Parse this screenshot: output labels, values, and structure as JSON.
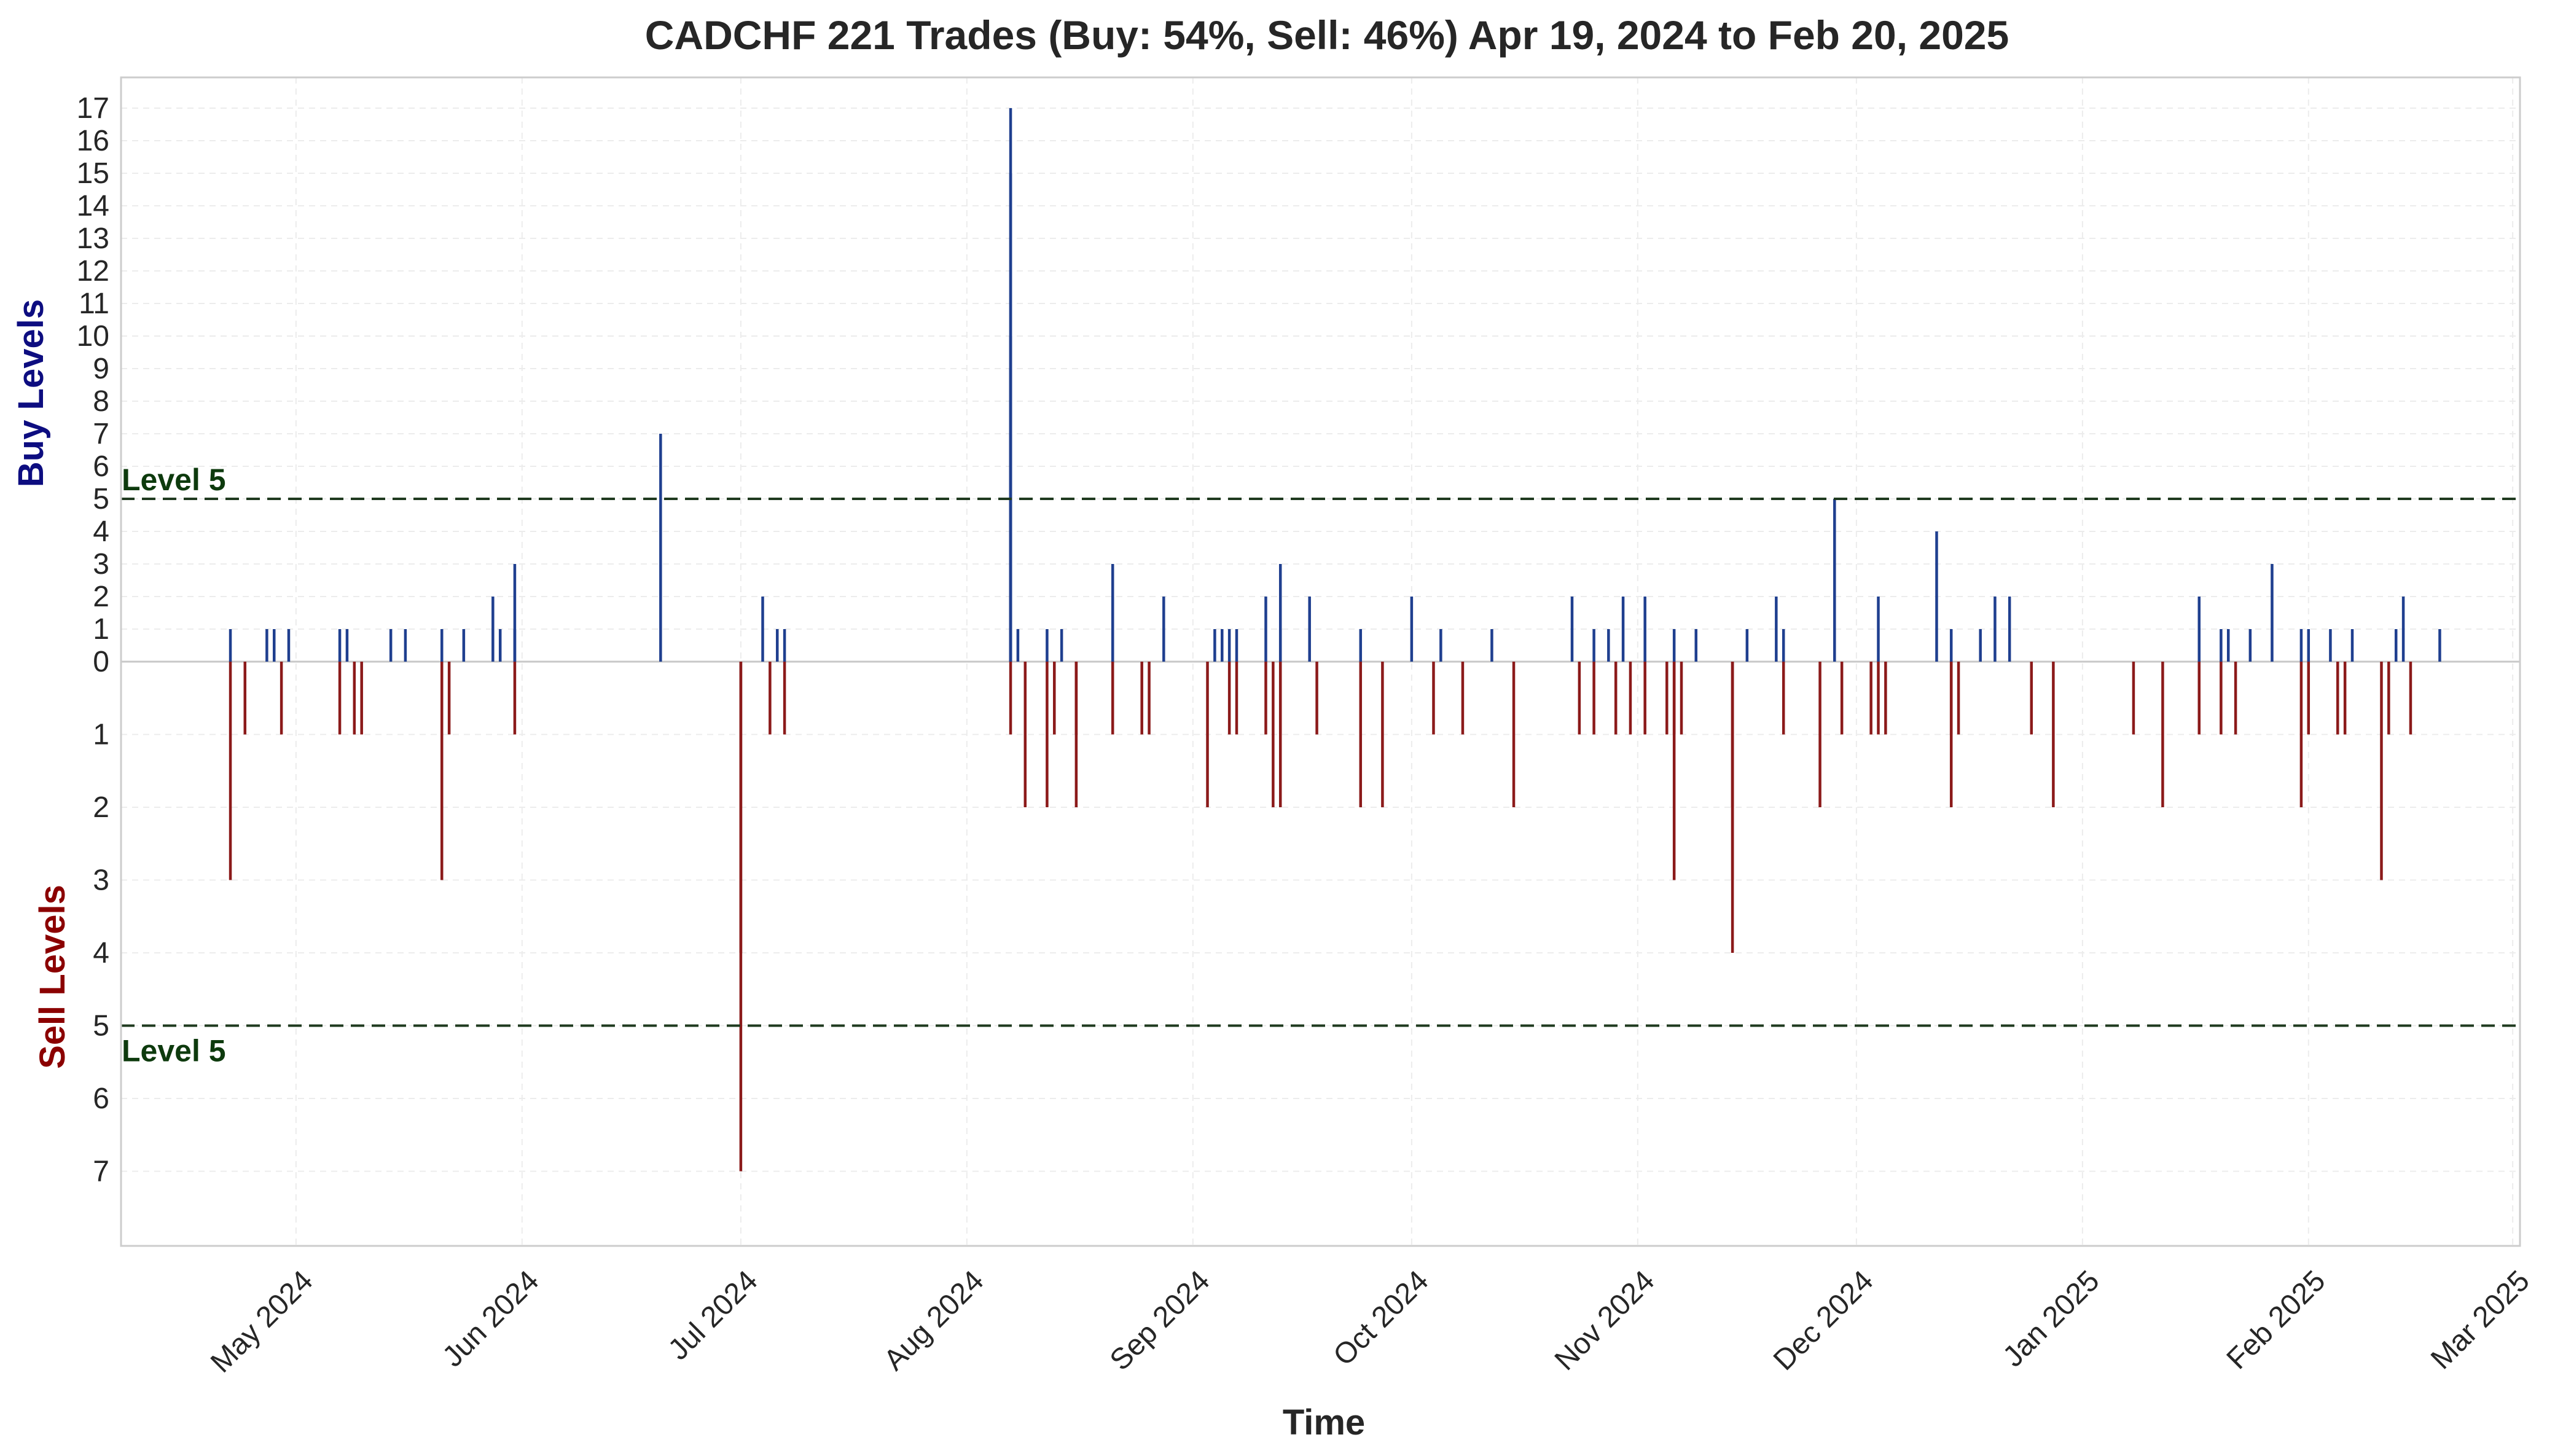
{
  "chart_data": {
    "type": "bar",
    "title": "CADCHF 221 Trades (Buy: 54%, Sell: 46%) Apr 19, 2024 to Feb 20, 2025",
    "xlabel": "Time",
    "buy_label": "Buy Levels",
    "sell_label": "Sell Levels",
    "x_range": [
      "2024-04-07",
      "2025-03-02"
    ],
    "x_ticks": [
      {
        "date": "2024-05-01",
        "label": "May 2024"
      },
      {
        "date": "2024-06-01",
        "label": "Jun 2024"
      },
      {
        "date": "2024-07-01",
        "label": "Jul 2024"
      },
      {
        "date": "2024-08-01",
        "label": "Aug 2024"
      },
      {
        "date": "2024-09-01",
        "label": "Sep 2024"
      },
      {
        "date": "2024-10-01",
        "label": "Oct 2024"
      },
      {
        "date": "2024-11-01",
        "label": "Nov 2024"
      },
      {
        "date": "2024-12-01",
        "label": "Dec 2024"
      },
      {
        "date": "2025-01-01",
        "label": "Jan 2025"
      },
      {
        "date": "2025-02-01",
        "label": "Feb 2025"
      },
      {
        "date": "2025-03-01",
        "label": "Mar 2025"
      }
    ],
    "buy_ylim": [
      0,
      18
    ],
    "buy_ticks": [
      0,
      1,
      2,
      3,
      4,
      5,
      6,
      7,
      8,
      9,
      10,
      11,
      12,
      13,
      14,
      15,
      16,
      17
    ],
    "sell_ylim": [
      0,
      8
    ],
    "sell_ticks": [
      1,
      2,
      3,
      4,
      5,
      6,
      7
    ],
    "reference": {
      "label": "Level 5",
      "value": 5
    },
    "colors": {
      "buy": "#1f3f8f",
      "sell": "#8b1a1a",
      "reference": "#1f3a1f",
      "buy_label": "#0d0d80",
      "sell_label": "#8b0000",
      "ref_label": "#0d3a0d"
    },
    "series": [
      {
        "name": "Buy",
        "points": [
          [
            "2024-04-22",
            1
          ],
          [
            "2024-04-27",
            1
          ],
          [
            "2024-04-28",
            1
          ],
          [
            "2024-04-30",
            1
          ],
          [
            "2024-05-07",
            1
          ],
          [
            "2024-05-08",
            1
          ],
          [
            "2024-05-14",
            1
          ],
          [
            "2024-05-16",
            1
          ],
          [
            "2024-05-21",
            1
          ],
          [
            "2024-05-24",
            1
          ],
          [
            "2024-05-28",
            2
          ],
          [
            "2024-05-29",
            1
          ],
          [
            "2024-05-31",
            3
          ],
          [
            "2024-05-31",
            1
          ],
          [
            "2024-06-20",
            7
          ],
          [
            "2024-07-04",
            2
          ],
          [
            "2024-07-06",
            1
          ],
          [
            "2024-07-07",
            1
          ],
          [
            "2024-08-07",
            17
          ],
          [
            "2024-08-07",
            15
          ],
          [
            "2024-08-07",
            10
          ],
          [
            "2024-08-07",
            9
          ],
          [
            "2024-08-07",
            7
          ],
          [
            "2024-08-08",
            1
          ],
          [
            "2024-08-12",
            1
          ],
          [
            "2024-08-14",
            1
          ],
          [
            "2024-08-21",
            3
          ],
          [
            "2024-08-21",
            2
          ],
          [
            "2024-08-28",
            2
          ],
          [
            "2024-09-04",
            1
          ],
          [
            "2024-09-05",
            1
          ],
          [
            "2024-09-06",
            1
          ],
          [
            "2024-09-07",
            1
          ],
          [
            "2024-09-11",
            2
          ],
          [
            "2024-09-13",
            3
          ],
          [
            "2024-09-13",
            1
          ],
          [
            "2024-09-17",
            2
          ],
          [
            "2024-09-24",
            1
          ],
          [
            "2024-10-01",
            2
          ],
          [
            "2024-10-05",
            1
          ],
          [
            "2024-10-12",
            1
          ],
          [
            "2024-10-23",
            2
          ],
          [
            "2024-10-26",
            1
          ],
          [
            "2024-10-28",
            1
          ],
          [
            "2024-10-30",
            2
          ],
          [
            "2024-11-02",
            2
          ],
          [
            "2024-11-06",
            1
          ],
          [
            "2024-11-09",
            1
          ],
          [
            "2024-11-16",
            1
          ],
          [
            "2024-11-20",
            2
          ],
          [
            "2024-11-21",
            1
          ],
          [
            "2024-11-28",
            5
          ],
          [
            "2024-12-04",
            2
          ],
          [
            "2024-12-12",
            4
          ],
          [
            "2024-12-14",
            1
          ],
          [
            "2024-12-18",
            1
          ],
          [
            "2024-12-20",
            2
          ],
          [
            "2024-12-22",
            2
          ],
          [
            "2025-01-17",
            2
          ],
          [
            "2025-01-20",
            1
          ],
          [
            "2025-01-21",
            1
          ],
          [
            "2025-01-24",
            1
          ],
          [
            "2025-01-27",
            3
          ],
          [
            "2025-01-31",
            1
          ],
          [
            "2025-02-01",
            1
          ],
          [
            "2025-02-04",
            1
          ],
          [
            "2025-02-07",
            1
          ],
          [
            "2025-02-13",
            1
          ],
          [
            "2025-02-14",
            2
          ],
          [
            "2025-02-19",
            1
          ]
        ]
      },
      {
        "name": "Sell",
        "points": [
          [
            "2024-04-22",
            3
          ],
          [
            "2024-04-24",
            1
          ],
          [
            "2024-04-29",
            1
          ],
          [
            "2024-05-07",
            1
          ],
          [
            "2024-05-09",
            1
          ],
          [
            "2024-05-10",
            1
          ],
          [
            "2024-05-21",
            3
          ],
          [
            "2024-05-22",
            1
          ],
          [
            "2024-05-31",
            1
          ],
          [
            "2024-07-01",
            7
          ],
          [
            "2024-07-01",
            4
          ],
          [
            "2024-07-05",
            1
          ],
          [
            "2024-07-07",
            1
          ],
          [
            "2024-08-07",
            1
          ],
          [
            "2024-08-09",
            2
          ],
          [
            "2024-08-12",
            2
          ],
          [
            "2024-08-13",
            1
          ],
          [
            "2024-08-16",
            2
          ],
          [
            "2024-08-16",
            1
          ],
          [
            "2024-08-21",
            1
          ],
          [
            "2024-08-25",
            1
          ],
          [
            "2024-08-26",
            1
          ],
          [
            "2024-09-03",
            2
          ],
          [
            "2024-09-06",
            1
          ],
          [
            "2024-09-07",
            1
          ],
          [
            "2024-09-11",
            1
          ],
          [
            "2024-09-12",
            2
          ],
          [
            "2024-09-13",
            2
          ],
          [
            "2024-09-13",
            1
          ],
          [
            "2024-09-18",
            1
          ],
          [
            "2024-09-24",
            2
          ],
          [
            "2024-09-27",
            2
          ],
          [
            "2024-10-04",
            1
          ],
          [
            "2024-10-08",
            1
          ],
          [
            "2024-10-15",
            2
          ],
          [
            "2024-10-24",
            1
          ],
          [
            "2024-10-26",
            1
          ],
          [
            "2024-10-29",
            1
          ],
          [
            "2024-10-31",
            1
          ],
          [
            "2024-11-02",
            1
          ],
          [
            "2024-11-05",
            1
          ],
          [
            "2024-11-06",
            3
          ],
          [
            "2024-11-06",
            1
          ],
          [
            "2024-11-07",
            1
          ],
          [
            "2024-11-14",
            4
          ],
          [
            "2024-11-14",
            3
          ],
          [
            "2024-11-14",
            2
          ],
          [
            "2024-11-21",
            1
          ],
          [
            "2024-11-26",
            2
          ],
          [
            "2024-11-29",
            1
          ],
          [
            "2024-12-03",
            1
          ],
          [
            "2024-12-04",
            1
          ],
          [
            "2024-12-05",
            1
          ],
          [
            "2024-12-14",
            2
          ],
          [
            "2024-12-14",
            1
          ],
          [
            "2024-12-15",
            1
          ],
          [
            "2024-12-25",
            1
          ],
          [
            "2024-12-28",
            2
          ],
          [
            "2025-01-08",
            1
          ],
          [
            "2025-01-12",
            2
          ],
          [
            "2025-01-17",
            1
          ],
          [
            "2025-01-20",
            1
          ],
          [
            "2025-01-22",
            1
          ],
          [
            "2025-01-31",
            2
          ],
          [
            "2025-02-01",
            1
          ],
          [
            "2025-02-05",
            1
          ],
          [
            "2025-02-06",
            1
          ],
          [
            "2025-02-11",
            3
          ],
          [
            "2025-02-12",
            1
          ],
          [
            "2025-02-15",
            1
          ]
        ]
      }
    ]
  }
}
